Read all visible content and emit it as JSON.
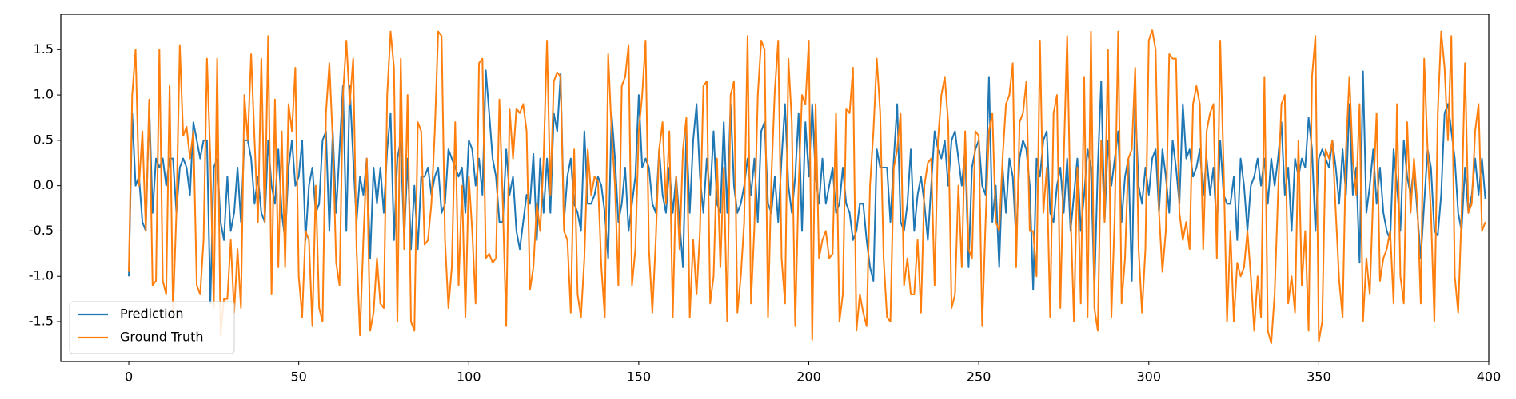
{
  "chart_data": {
    "type": "line",
    "x": [
      0,
      1,
      2,
      3,
      4,
      5,
      6,
      7,
      8,
      9,
      10,
      11,
      12,
      13,
      14,
      15,
      16,
      17,
      18,
      19,
      20,
      21,
      22,
      23,
      24,
      25,
      26,
      27,
      28,
      29,
      30,
      31,
      32,
      33,
      34,
      35,
      36,
      37,
      38,
      39,
      40,
      41,
      42,
      43,
      44,
      45,
      46,
      47,
      48,
      49,
      50,
      51,
      52,
      53,
      54,
      55,
      56,
      57,
      58,
      59,
      60,
      61,
      62,
      63,
      64,
      65,
      66,
      67,
      68,
      69,
      70,
      71,
      72,
      73,
      74,
      75,
      76,
      77,
      78,
      79,
      80,
      81,
      82,
      83,
      84,
      85,
      86,
      87,
      88,
      89,
      90,
      91,
      92,
      93,
      94,
      95,
      96,
      97,
      98,
      99,
      100,
      101,
      102,
      103,
      104,
      105,
      106,
      107,
      108,
      109,
      110,
      111,
      112,
      113,
      114,
      115,
      116,
      117,
      118,
      119,
      120,
      121,
      122,
      123,
      124,
      125,
      126,
      127,
      128,
      129,
      130,
      131,
      132,
      133,
      134,
      135,
      136,
      137,
      138,
      139,
      140,
      141,
      142,
      143,
      144,
      145,
      146,
      147,
      148,
      149,
      150,
      151,
      152,
      153,
      154,
      155,
      156,
      157,
      158,
      159,
      160,
      161,
      162,
      163,
      164,
      165,
      166,
      167,
      168,
      169,
      170,
      171,
      172,
      173,
      174,
      175,
      176,
      177,
      178,
      179,
      180,
      181,
      182,
      183,
      184,
      185,
      186,
      187,
      188,
      189,
      190,
      191,
      192,
      193,
      194,
      195,
      196,
      197,
      198,
      199,
      200,
      201,
      202,
      203,
      204,
      205,
      206,
      207,
      208,
      209,
      210,
      211,
      212,
      213,
      214,
      215,
      216,
      217,
      218,
      219,
      220,
      221,
      222,
      223,
      224,
      225,
      226,
      227,
      228,
      229,
      230,
      231,
      232,
      233,
      234,
      235,
      236,
      237,
      238,
      239,
      240,
      241,
      242,
      243,
      244,
      245,
      246,
      247,
      248,
      249,
      250,
      251,
      252,
      253,
      254,
      255,
      256,
      257,
      258,
      259,
      260,
      261,
      262,
      263,
      264,
      265,
      266,
      267,
      268,
      269,
      270,
      271,
      272,
      273,
      274,
      275,
      276,
      277,
      278,
      279,
      280,
      281,
      282,
      283,
      284,
      285,
      286,
      287,
      288,
      289,
      290,
      291,
      292,
      293,
      294,
      295,
      296,
      297,
      298,
      299,
      300,
      301,
      302,
      303,
      304,
      305,
      306,
      307,
      308,
      309,
      310,
      311,
      312,
      313,
      314,
      315,
      316,
      317,
      318,
      319,
      320,
      321,
      322,
      323,
      324,
      325,
      326,
      327,
      328,
      329,
      330,
      331,
      332,
      333,
      334,
      335,
      336,
      337,
      338,
      339,
      340,
      341,
      342,
      343,
      344,
      345,
      346,
      347,
      348,
      349,
      350,
      351,
      352,
      353,
      354,
      355,
      356,
      357,
      358,
      359,
      360,
      361,
      362,
      363,
      364,
      365,
      366,
      367,
      368,
      369,
      370,
      371,
      372,
      373,
      374,
      375,
      376,
      377,
      378,
      379,
      380,
      381,
      382,
      383,
      384,
      385,
      386,
      387,
      388,
      389,
      390,
      391,
      392,
      393,
      394,
      395,
      396,
      397,
      398,
      399
    ],
    "series": [
      {
        "name": "Prediction",
        "color": "#1f77b4",
        "values": [
          -1.0,
          0.8,
          0.0,
          0.1,
          -0.4,
          -0.5,
          0.9,
          -0.3,
          0.3,
          0.2,
          0.3,
          0.0,
          0.3,
          0.3,
          -0.3,
          0.2,
          0.3,
          0.2,
          -0.1,
          0.7,
          0.5,
          0.3,
          0.5,
          0.5,
          -1.3,
          0.2,
          0.3,
          -0.4,
          -0.6,
          0.1,
          -0.5,
          -0.3,
          0.2,
          -0.4,
          0.5,
          0.5,
          0.3,
          -0.2,
          0.1,
          -0.3,
          -0.4,
          0.5,
          0.0,
          -0.2,
          0.4,
          -0.3,
          -0.6,
          0.2,
          0.5,
          0.0,
          0.1,
          0.5,
          -0.6,
          0.0,
          0.2,
          -0.3,
          -0.2,
          0.5,
          0.6,
          -0.5,
          0.6,
          -0.3,
          0.4,
          1.1,
          -0.5,
          1.1,
          0.3,
          -0.4,
          0.1,
          -0.1,
          0.3,
          -0.8,
          0.2,
          -0.2,
          0.2,
          -0.3,
          0.4,
          0.8,
          -0.6,
          0.3,
          0.5,
          -0.6,
          0.3,
          -0.7,
          0.0,
          -0.7,
          0.1,
          0.1,
          0.2,
          -0.1,
          0.1,
          0.2,
          -0.3,
          -0.2,
          0.4,
          0.3,
          0.2,
          0.1,
          0.2,
          -0.3,
          0.5,
          0.4,
          0.0,
          0.3,
          -0.1,
          1.27,
          0.8,
          0.3,
          0.1,
          -0.4,
          -0.4,
          0.4,
          -0.1,
          0.1,
          -0.5,
          -0.7,
          -0.4,
          -0.1,
          -0.2,
          0.35,
          -0.6,
          0.3,
          -0.3,
          0.3,
          -0.3,
          0.8,
          0.6,
          1.23,
          -0.4,
          0.1,
          0.3,
          -0.2,
          -0.3,
          -0.5,
          0.6,
          -0.2,
          -0.2,
          -0.1,
          0.1,
          0.0,
          -0.3,
          -0.8,
          0.8,
          0.3,
          -0.4,
          -0.2,
          0.2,
          -0.5,
          -0.2,
          0.1,
          1.0,
          0.2,
          0.3,
          0.2,
          -0.2,
          -0.3,
          0.4,
          -0.1,
          -0.3,
          0.2,
          -0.3,
          0.1,
          -0.4,
          -0.9,
          0.6,
          -0.3,
          0.5,
          0.9,
          0.1,
          -0.3,
          0.3,
          -0.1,
          0.6,
          -0.2,
          -0.3,
          0.7,
          -0.3,
          0.9,
          0.0,
          -0.3,
          -0.2,
          0.0,
          0.3,
          -0.1,
          0.3,
          -0.4,
          0.6,
          0.7,
          -0.2,
          -0.3,
          0.1,
          -0.4,
          0.3,
          0.9,
          0.0,
          -0.3,
          0.1,
          0.8,
          -0.5,
          0.7,
          0.1,
          0.9,
          0.1,
          -0.2,
          0.3,
          -0.2,
          0.0,
          0.2,
          -0.3,
          -0.2,
          0.2,
          -0.2,
          -0.3,
          -0.6,
          -0.5,
          -0.2,
          -0.2,
          -0.6,
          -0.9,
          -1.05,
          0.4,
          0.2,
          0.2,
          0.2,
          -0.4,
          0.3,
          0.9,
          -0.4,
          -0.5,
          -0.2,
          0.4,
          -0.5,
          -0.1,
          0.1,
          -0.2,
          -0.6,
          0.0,
          0.6,
          0.4,
          0.3,
          0.5,
          0.0,
          0.5,
          0.6,
          0.3,
          0.0,
          0.4,
          -0.9,
          0.2,
          0.4,
          0.5,
          0.0,
          -0.1,
          1.2,
          -0.4,
          0.0,
          -0.9,
          0.2,
          -0.3,
          0.3,
          0.1,
          -0.6,
          0.3,
          0.5,
          0.4,
          0.0,
          -1.15,
          0.3,
          0.1,
          0.5,
          0.6,
          -0.3,
          -0.4,
          0.0,
          0.2,
          -0.3,
          0.3,
          -0.5,
          -0.1,
          0.3,
          -0.5,
          -0.1,
          0.4,
          0.2,
          -1.15,
          0.2,
          1.15,
          -0.4,
          0.5,
          0.0,
          0.3,
          0.6,
          -0.4,
          0.1,
          0.3,
          -1.05,
          0.9,
          0.0,
          -0.2,
          0.2,
          -0.1,
          0.3,
          0.4,
          -0.3,
          0.4,
          0.1,
          -0.3,
          0.5,
          0.2,
          -0.2,
          0.9,
          0.3,
          0.4,
          0.1,
          0.2,
          0.4,
          -0.1,
          0.3,
          -0.1,
          0.2,
          -0.5,
          0.5,
          -0.1,
          -0.2,
          -0.2,
          0.1,
          -0.6,
          0.3,
          0.0,
          -0.5,
          0.0,
          0.1,
          0.3,
          0.0,
          0.3,
          -0.2,
          0.3,
          0.0,
          0.3,
          0.7,
          -0.1,
          0.2,
          -0.5,
          0.3,
          0.1,
          0.3,
          0.2,
          0.75,
          0.4,
          -0.5,
          0.3,
          0.4,
          0.3,
          0.2,
          0.5,
          0.2,
          -0.2,
          0.4,
          -0.1,
          0.9,
          -0.1,
          0.2,
          -0.85,
          1.26,
          -0.3,
          0.0,
          0.4,
          -0.2,
          0.2,
          -0.3,
          -0.5,
          -0.6,
          0.4,
          0.0,
          -0.5,
          0.5,
          0.1,
          -0.1,
          0.2,
          -0.3,
          -0.8,
          -0.2,
          0.4,
          0.2,
          -0.5,
          -0.55,
          -0.1,
          0.8,
          0.9,
          0.6,
          0.3,
          -0.3,
          -0.5,
          0.2,
          -0.3,
          -0.1,
          0.3,
          -0.1,
          0.3,
          -0.15
        ]
      },
      {
        "name": "Ground Truth",
        "color": "#ff7f0e",
        "values": [
          -0.95,
          1.0,
          1.5,
          0.0,
          0.6,
          -0.5,
          0.95,
          -1.1,
          -1.05,
          1.5,
          -1.05,
          -1.2,
          1.1,
          -1.4,
          -0.3,
          1.55,
          0.55,
          0.65,
          0.3,
          0.6,
          -1.1,
          -1.2,
          -0.6,
          1.4,
          0.3,
          -1.35,
          1.4,
          -1.65,
          -1.25,
          -1.25,
          -0.6,
          -1.4,
          -0.7,
          -1.35,
          1.0,
          0.5,
          1.45,
          0.5,
          -0.4,
          1.4,
          -0.4,
          1.65,
          -1.2,
          0.95,
          -0.9,
          0.6,
          -0.9,
          0.9,
          0.6,
          1.3,
          -1.0,
          -1.45,
          -0.5,
          -0.6,
          -1.55,
          0.0,
          -1.35,
          -1.5,
          0.8,
          1.35,
          0.5,
          -0.85,
          -1.1,
          1.0,
          1.6,
          0.9,
          1.4,
          -0.7,
          -1.65,
          -0.6,
          0.3,
          -1.6,
          -1.4,
          -0.8,
          -1.3,
          -1.35,
          1.0,
          1.7,
          1.3,
          -1.5,
          1.4,
          -0.7,
          1.0,
          -1.5,
          -1.6,
          0.7,
          0.6,
          -0.65,
          -0.6,
          -0.2,
          0.6,
          1.7,
          1.65,
          -0.6,
          -1.35,
          -0.9,
          0.7,
          -1.1,
          0.0,
          -1.45,
          0.1,
          -0.5,
          -1.3,
          1.35,
          1.4,
          -0.8,
          -0.75,
          -0.85,
          -0.8,
          0.95,
          -0.2,
          -1.55,
          0.85,
          0.3,
          0.85,
          0.8,
          0.9,
          0.6,
          -1.15,
          -0.9,
          -0.2,
          -0.5,
          0.3,
          1.6,
          -0.1,
          1.15,
          1.25,
          1.2,
          -0.5,
          -0.6,
          -1.4,
          0.4,
          -1.2,
          -1.45,
          -0.8,
          0.4,
          -0.1,
          0.1,
          0.05,
          -0.9,
          -1.45,
          1.45,
          0.6,
          0.0,
          -1.1,
          1.1,
          1.2,
          1.55,
          -1.1,
          -0.7,
          0.6,
          1.0,
          1.6,
          -0.7,
          -1.4,
          -0.6,
          0.4,
          0.7,
          -0.2,
          0.6,
          -1.45,
          0.1,
          -0.7,
          0.4,
          0.75,
          -1.45,
          -0.6,
          -1.2,
          -0.5,
          1.1,
          1.15,
          -1.3,
          -1.0,
          0.3,
          -0.9,
          0.2,
          -1.5,
          1.0,
          1.15,
          -1.4,
          -1.0,
          -0.4,
          1.65,
          -1.3,
          -0.45,
          1.0,
          1.6,
          1.5,
          -1.45,
          0.1,
          1.05,
          1.6,
          -0.8,
          -1.3,
          1.4,
          0.7,
          -1.55,
          0.0,
          1.0,
          0.9,
          1.6,
          -1.7,
          0.9,
          -0.8,
          -0.6,
          -0.5,
          -0.8,
          -0.75,
          0.8,
          -1.5,
          -1.2,
          0.85,
          0.8,
          1.3,
          -1.6,
          -1.2,
          -1.4,
          -1.55,
          0.0,
          0.6,
          1.4,
          0.8,
          -0.8,
          -1.45,
          -1.5,
          0.2,
          0.4,
          0.8,
          -1.1,
          -0.8,
          -1.2,
          -1.2,
          -0.6,
          -1.4,
          0.0,
          0.25,
          0.3,
          -1.1,
          0.5,
          1.0,
          1.2,
          0.7,
          -1.35,
          -1.2,
          0.0,
          -0.9,
          0.6,
          -0.7,
          -0.8,
          0.6,
          0.55,
          -1.55,
          -0.4,
          0.6,
          0.8,
          -0.4,
          -0.5,
          0.3,
          0.9,
          1.0,
          1.35,
          -0.9,
          0.7,
          0.8,
          1.15,
          -0.5,
          -0.5,
          -1.0,
          1.6,
          -0.3,
          0.2,
          -1.45,
          0.8,
          1.0,
          -1.35,
          0.3,
          1.65,
          -0.3,
          -1.5,
          0.2,
          -1.3,
          1.2,
          -1.45,
          1.7,
          -1.35,
          -1.6,
          0.5,
          -0.4,
          1.5,
          -1.45,
          -0.3,
          1.7,
          -1.3,
          -0.8,
          0.3,
          0.4,
          1.3,
          -0.7,
          -1.4,
          -0.7,
          1.6,
          1.72,
          1.5,
          -0.3,
          -0.95,
          -0.5,
          1.45,
          1.4,
          1.4,
          -0.3,
          -0.6,
          -0.4,
          -0.7,
          0.9,
          1.1,
          0.9,
          -0.7,
          0.6,
          0.8,
          0.9,
          -0.8,
          1.6,
          0.2,
          -1.5,
          -0.5,
          -1.5,
          -0.85,
          -1.0,
          -0.9,
          -0.5,
          -1.0,
          -1.6,
          -1.0,
          -1.45,
          1.2,
          -1.6,
          -1.74,
          -1.2,
          -0.1,
          0.9,
          1.0,
          -1.3,
          -1.0,
          -1.4,
          0.5,
          -1.1,
          -0.5,
          -1.6,
          1.2,
          1.65,
          -1.72,
          -1.5,
          0.4,
          0.3,
          0.5,
          -0.3,
          -1.05,
          -1.45,
          0.4,
          1.2,
          0.3,
          -0.1,
          0.9,
          -1.5,
          -0.8,
          -1.2,
          -0.1,
          0.8,
          -1.05,
          -0.8,
          -0.7,
          -0.5,
          -1.3,
          0.9,
          -1.0,
          -1.3,
          0.7,
          -0.3,
          0.3,
          -0.2,
          -1.3,
          1.4,
          0.4,
          -0.3,
          -1.5,
          0.8,
          1.7,
          1.3,
          0.5,
          1.65,
          -1.0,
          -1.4,
          -0.3,
          1.35,
          -0.3,
          -0.2,
          0.6,
          0.9,
          -0.5,
          -0.4
        ]
      }
    ],
    "xlim": [
      -20,
      400
    ],
    "xticks": [
      0,
      50,
      100,
      150,
      200,
      250,
      300,
      350,
      400
    ],
    "ylim": [
      -1.94,
      1.89
    ],
    "yticks": [
      -1.5,
      {
        "value": -1,
        "label": "-1.0"
      },
      -0.5,
      {
        "value": 0,
        "label": "0.0"
      },
      0.5,
      {
        "value": 1,
        "label": "1.0"
      },
      1.5
    ],
    "grid": false,
    "legend": "lower-left"
  }
}
